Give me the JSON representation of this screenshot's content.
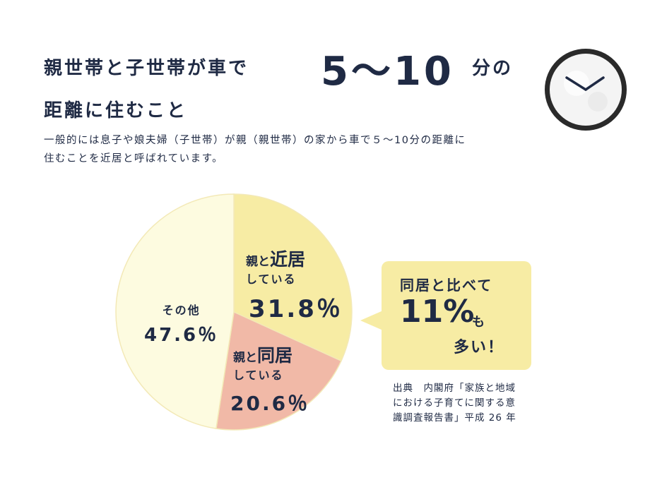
{
  "headline": {
    "line1": "親世帯と子世帯が車で",
    "number": "5〜10",
    "unit": "分の",
    "line2": "距離に住むこと"
  },
  "subtext": {
    "line1": "一般的には息子や娘夫婦（子世帯）が親（親世帯）の家から車で５〜10分の距離に",
    "line2": "住むことを近居と呼ばれています。"
  },
  "chart_data": {
    "type": "pie",
    "title": "",
    "slices": [
      {
        "label_pre": "親と",
        "label_strong": "近居",
        "label_post": "している",
        "value": 31.8,
        "value_text": "31.8％",
        "color": "#f7eca4"
      },
      {
        "label_pre": "親と",
        "label_strong": "同居",
        "label_post": "している",
        "value": 20.6,
        "value_text": "20.6％",
        "color": "#f1b9a7"
      },
      {
        "label_pre": "その他",
        "label_strong": "",
        "label_post": "",
        "value": 47.6,
        "value_text": "47.6％",
        "color": "#fdfbe0"
      }
    ],
    "start_angle_deg": 0,
    "direction": "clockwise"
  },
  "callout": {
    "line1": "同居と比べて",
    "percent": "11%",
    "suffix": "も",
    "line3": "多い！",
    "color": "#f7eca4"
  },
  "source": {
    "line1": "出典　内閣府「家族と地域",
    "line2": "における子育てに関する意",
    "line3": "識調査報告書」平成 26 年"
  },
  "icons": {
    "clock": "clock-icon"
  },
  "colors": {
    "text": "#1f2a44",
    "slice_border": "#f3e9b7"
  }
}
